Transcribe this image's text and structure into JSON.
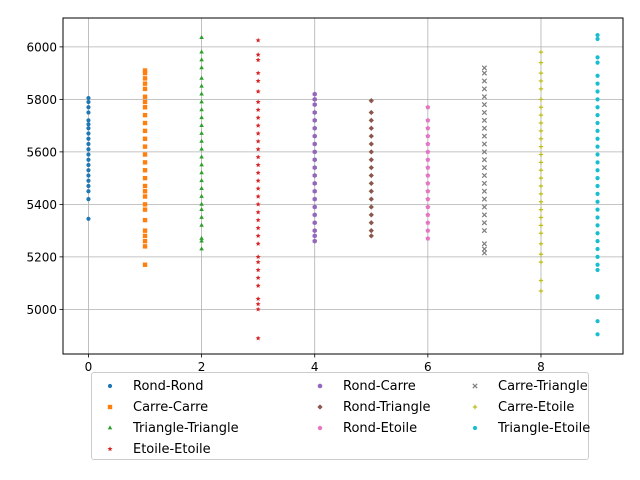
{
  "chart_data": {
    "type": "scatter",
    "title": "",
    "xlabel": "",
    "ylabel": "",
    "xlim": [
      -0.45,
      9.45
    ],
    "ylim": [
      4830,
      6110
    ],
    "xticks": [
      0,
      2,
      4,
      6,
      8
    ],
    "yticks": [
      5000,
      5200,
      5400,
      5600,
      5800,
      6000
    ],
    "xtick_labels": [
      "0",
      "2",
      "4",
      "6",
      "8"
    ],
    "ytick_labels": [
      "5000",
      "5200",
      "5400",
      "5600",
      "5800",
      "6000"
    ],
    "grid": true,
    "legend_placement": "below, 3 columns",
    "series": [
      {
        "name": "Rond-Rond",
        "x": 0,
        "marker": "circle",
        "color": "#1f77b4",
        "values": [
          5345,
          5420,
          5450,
          5470,
          5490,
          5510,
          5530,
          5550,
          5570,
          5590,
          5610,
          5630,
          5650,
          5670,
          5690,
          5705,
          5720,
          5750,
          5770,
          5790,
          5805
        ]
      },
      {
        "name": "Carre-Carre",
        "x": 1,
        "marker": "square",
        "color": "#ff7f0e",
        "values": [
          5170,
          5240,
          5260,
          5280,
          5300,
          5340,
          5380,
          5400,
          5430,
          5450,
          5470,
          5500,
          5530,
          5560,
          5590,
          5620,
          5650,
          5680,
          5710,
          5740,
          5770,
          5790,
          5810,
          5840,
          5860,
          5880,
          5900,
          5910
        ]
      },
      {
        "name": "Triangle-Triangle",
        "x": 2,
        "marker": "triangle",
        "color": "#2ca02c",
        "values": [
          5230,
          5260,
          5270,
          5320,
          5350,
          5380,
          5400,
          5430,
          5460,
          5490,
          5520,
          5550,
          5580,
          5610,
          5640,
          5670,
          5700,
          5730,
          5760,
          5790,
          5820,
          5850,
          5880,
          5920,
          5950,
          5980,
          6035
        ]
      },
      {
        "name": "Etoile-Etoile",
        "x": 3,
        "marker": "star",
        "color": "#d62728",
        "values": [
          4890,
          5000,
          5020,
          5040,
          5090,
          5120,
          5150,
          5180,
          5200,
          5250,
          5280,
          5310,
          5340,
          5370,
          5400,
          5430,
          5460,
          5490,
          5520,
          5550,
          5580,
          5610,
          5640,
          5670,
          5700,
          5730,
          5760,
          5790,
          5830,
          5870,
          5900,
          5950,
          5970,
          6025
        ]
      },
      {
        "name": "Rond-Carre",
        "x": 4,
        "marker": "hexagon",
        "color": "#9467bd",
        "values": [
          5260,
          5280,
          5300,
          5330,
          5360,
          5390,
          5420,
          5450,
          5480,
          5510,
          5540,
          5570,
          5600,
          5630,
          5660,
          5690,
          5720,
          5750,
          5780,
          5800,
          5820
        ]
      },
      {
        "name": "Rond-Triangle",
        "x": 5,
        "marker": "diamond",
        "color": "#8c564b",
        "values": [
          5280,
          5300,
          5330,
          5360,
          5390,
          5420,
          5450,
          5480,
          5510,
          5540,
          5570,
          5600,
          5630,
          5660,
          5690,
          5720,
          5750,
          5795
        ]
      },
      {
        "name": "Rond-Etoile",
        "x": 6,
        "marker": "pentagon",
        "color": "#e377c2",
        "values": [
          5270,
          5300,
          5330,
          5360,
          5390,
          5420,
          5450,
          5480,
          5510,
          5540,
          5570,
          5600,
          5630,
          5660,
          5690,
          5720,
          5770
        ]
      },
      {
        "name": "Carre-Triangle",
        "x": 7,
        "marker": "x",
        "color": "#7f7f7f",
        "values": [
          5215,
          5230,
          5250,
          5300,
          5330,
          5360,
          5390,
          5420,
          5450,
          5480,
          5510,
          5540,
          5570,
          5600,
          5630,
          5660,
          5690,
          5720,
          5750,
          5780,
          5810,
          5840,
          5870,
          5900,
          5920
        ]
      },
      {
        "name": "Carre-Etoile",
        "x": 8,
        "marker": "plus",
        "color": "#bcbd22",
        "values": [
          5070,
          5110,
          5180,
          5210,
          5250,
          5290,
          5320,
          5350,
          5380,
          5410,
          5440,
          5470,
          5500,
          5530,
          5560,
          5590,
          5620,
          5650,
          5680,
          5710,
          5740,
          5770,
          5800,
          5840,
          5870,
          5900,
          5940,
          5980
        ]
      },
      {
        "name": "Triangle-Etoile",
        "x": 9,
        "marker": "circle",
        "color": "#17becf",
        "values": [
          4905,
          4955,
          5045,
          5050,
          5150,
          5170,
          5200,
          5230,
          5260,
          5290,
          5320,
          5350,
          5380,
          5410,
          5440,
          5470,
          5500,
          5530,
          5560,
          5590,
          5620,
          5650,
          5680,
          5710,
          5740,
          5770,
          5800,
          5830,
          5860,
          5890,
          5940,
          5960,
          6030,
          6045
        ]
      }
    ]
  }
}
